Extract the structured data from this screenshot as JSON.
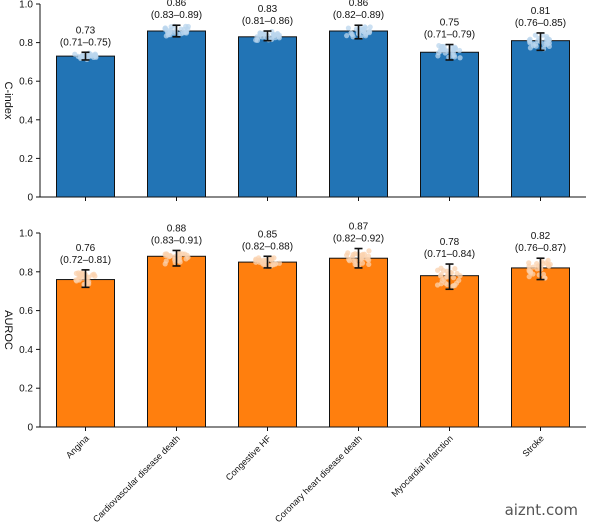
{
  "watermark": "aiznt.com",
  "chart_data": [
    {
      "type": "bar",
      "ylabel": "C-index",
      "ylim": [
        0,
        1.0
      ],
      "yticks": [
        "0",
        "0.2",
        "0.4",
        "0.6",
        "0.8",
        "1.0"
      ],
      "color": "#2274b5",
      "dot_color": "#b9d6ee",
      "categories": [
        "Angina",
        "Cardiovascular disease death",
        "Congestive HF",
        "Coronary heart disease death",
        "Myocardial infarction",
        "Stroke"
      ],
      "values": [
        0.73,
        0.86,
        0.83,
        0.86,
        0.75,
        0.81
      ],
      "ci_low": [
        0.71,
        0.83,
        0.81,
        0.82,
        0.71,
        0.76
      ],
      "ci_high": [
        0.75,
        0.89,
        0.86,
        0.89,
        0.79,
        0.85
      ],
      "value_labels": [
        "0.73",
        "0.86",
        "0.83",
        "0.86",
        "0.75",
        "0.81"
      ],
      "ci_labels": [
        "(0.71–0.75)",
        "(0.83–0.89)",
        "(0.81–0.86)",
        "(0.82–0.89)",
        "(0.71–0.79)",
        "(0.76–0.85)"
      ]
    },
    {
      "type": "bar",
      "ylabel": "AUROC",
      "ylim": [
        0,
        1.0
      ],
      "yticks": [
        "0",
        "0.2",
        "0.4",
        "0.6",
        "0.8",
        "1.0"
      ],
      "color": "#ff7f0e",
      "dot_color": "#fbd2ae",
      "categories": [
        "Angina",
        "Cardiovascular disease death",
        "Congestive HF",
        "Coronary heart disease death",
        "Myocardial infarction",
        "Stroke"
      ],
      "values": [
        0.76,
        0.88,
        0.85,
        0.87,
        0.78,
        0.82
      ],
      "ci_low": [
        0.72,
        0.83,
        0.82,
        0.82,
        0.71,
        0.76
      ],
      "ci_high": [
        0.81,
        0.91,
        0.88,
        0.92,
        0.84,
        0.87
      ],
      "value_labels": [
        "0.76",
        "0.88",
        "0.85",
        "0.87",
        "0.78",
        "0.82"
      ],
      "ci_labels": [
        "(0.72–0.81)",
        "(0.83–0.91)",
        "(0.82–0.88)",
        "(0.82–0.92)",
        "(0.71–0.84)",
        "(0.76–0.87)"
      ]
    }
  ]
}
